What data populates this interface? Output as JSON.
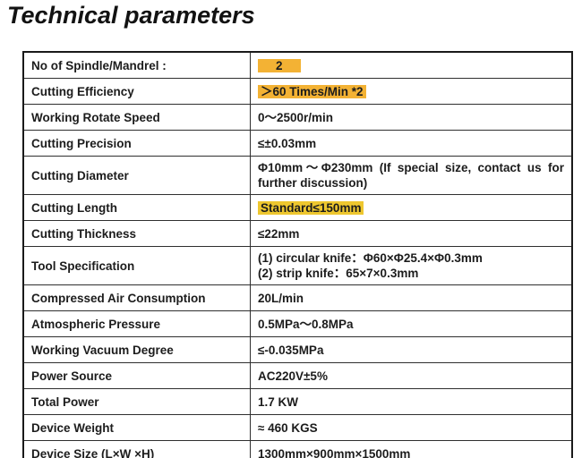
{
  "page": {
    "title": "Technical parameters"
  },
  "colors": {
    "highlight_default": "#F3B234",
    "border": "#2f2f2f",
    "text": "#1c1c1c"
  },
  "table": {
    "rows": [
      {
        "label": "No of Spindle/Mandrel :",
        "value": "2",
        "highlight": true,
        "highlight_color": "#F3B234",
        "pad": "0 20px"
      },
      {
        "label": "Cutting Efficiency",
        "value": "＞60 Times/Min *2",
        "highlight": true,
        "highlight_color": "#F3B234"
      },
      {
        "label": "Working Rotate Speed",
        "value": "0～2500r/min",
        "highlight": false
      },
      {
        "label": "Cutting Precision",
        "value": "≤±0.03mm",
        "highlight": false
      },
      {
        "label": "Cutting Diameter",
        "value": "Φ10mm～Φ230mm (If special size, contact us for further discussion)",
        "highlight": false
      },
      {
        "label": "Cutting Length",
        "value": "Standard≤150mm",
        "highlight": true,
        "highlight_color": "#EEC72F"
      },
      {
        "label": "Cutting Thickness",
        "value": "≤22mm",
        "highlight": false
      },
      {
        "label": "Tool Specification",
        "value": "(1) circular knife：Φ60×Φ25.4×Φ0.3mm\n(2) strip knife：65×7×0.3mm",
        "highlight": false
      },
      {
        "label": "Compressed Air Consumption",
        "value": "20L/min",
        "highlight": false
      },
      {
        "label": "Atmospheric Pressure",
        "value": "0.5MPa～0.8MPa",
        "highlight": false
      },
      {
        "label": "Working Vacuum Degree",
        "value": "≤-0.035MPa",
        "highlight": false
      },
      {
        "label": "Power Source",
        "value": "AC220V±5%",
        "highlight": false
      },
      {
        "label": "Total Power",
        "value": "1.7 KW",
        "highlight": false
      },
      {
        "label": "Device Weight",
        "value": "≈ 460 KGS",
        "highlight": false
      },
      {
        "label": "Device Size (L×W ×H)",
        "value": "1300mm×900mm×1500mm",
        "highlight": false
      }
    ]
  }
}
